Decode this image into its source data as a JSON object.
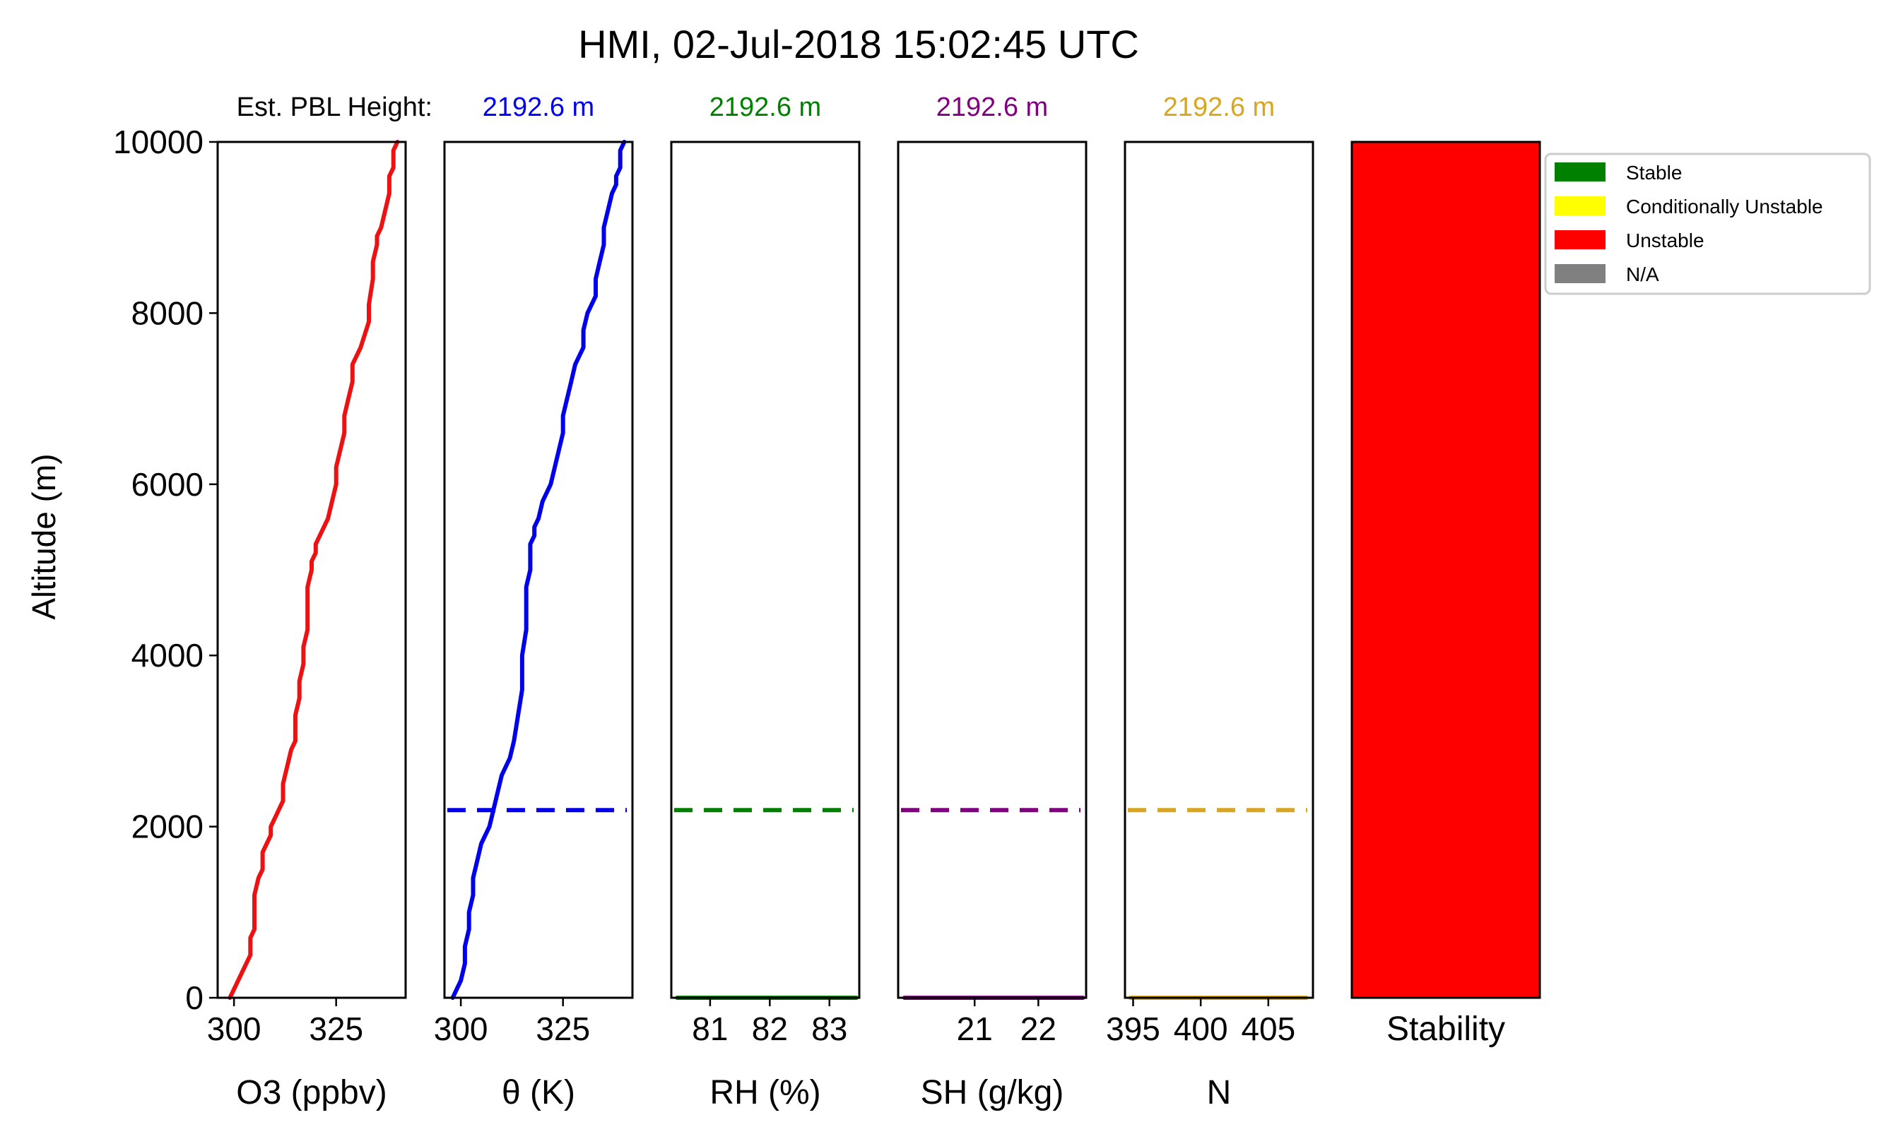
{
  "title": "HMI, 02-Jul-2018 15:02:45 UTC",
  "pbl_prefix": "Est. PBL Height:",
  "y_axis": {
    "label": "Altitude (m)",
    "ylim": [
      0,
      10000
    ],
    "ticks": [
      0,
      2000,
      4000,
      6000,
      8000,
      10000
    ]
  },
  "legend": {
    "placement": "upper-right, outside the stability panel",
    "items": [
      {
        "label": "Stable",
        "color": "#008000"
      },
      {
        "label": "Conditionally Unstable",
        "color": "#ffff00"
      },
      {
        "label": "Unstable",
        "color": "#ff0000"
      },
      {
        "label": "N/A",
        "color": "#808080"
      }
    ]
  },
  "chart_data": [
    {
      "type": "line",
      "xlabel": "O3 (ppbv)",
      "color": "#ee1111",
      "xlim": [
        296,
        342
      ],
      "ticks": [
        300,
        325
      ],
      "tick_labels": [
        "300",
        "325"
      ],
      "pbl_label": "",
      "series": [
        {
          "x": [
            299,
            300,
            301,
            302,
            303,
            304,
            304,
            305,
            305,
            305,
            306,
            307,
            307,
            307,
            308,
            309,
            309,
            310,
            312,
            312,
            313,
            314,
            315,
            315,
            315,
            316,
            316,
            317,
            317,
            318,
            318,
            318,
            319,
            319,
            320,
            320,
            322,
            323,
            324,
            325,
            325,
            326,
            327,
            327,
            328,
            329,
            329,
            330,
            331,
            333,
            333,
            334,
            334,
            335,
            335,
            336,
            337,
            338,
            338,
            339,
            339,
            340
          ],
          "y": [
            0,
            100,
            200,
            300,
            400,
            500,
            700,
            800,
            1000,
            1200,
            1400,
            1500,
            1600,
            1700,
            1800,
            1900,
            2000,
            2100,
            2300,
            2500,
            2700,
            2900,
            3000,
            3100,
            3300,
            3500,
            3700,
            3900,
            4100,
            4300,
            4500,
            4800,
            5000,
            5100,
            5200,
            5300,
            5500,
            5600,
            5800,
            6000,
            6200,
            6400,
            6600,
            6800,
            7000,
            7200,
            7400,
            7500,
            7600,
            7900,
            8100,
            8400,
            8600,
            8800,
            8900,
            9000,
            9200,
            9400,
            9600,
            9700,
            9900,
            10000
          ]
        }
      ]
    },
    {
      "type": "line",
      "xlabel": "θ (K)",
      "color": "#0000ee",
      "xlim": [
        296,
        342
      ],
      "ticks": [
        300,
        325
      ],
      "tick_labels": [
        "300",
        "325"
      ],
      "pbl_label": "2192.6 m",
      "pbl_height": 2192.6,
      "series": [
        {
          "x": [
            298,
            299,
            300,
            301,
            301,
            302,
            302,
            303,
            303,
            304,
            305,
            306,
            307,
            308,
            309,
            310,
            312,
            313,
            314,
            315,
            315,
            316,
            316,
            316,
            317,
            317,
            317,
            317,
            318,
            318,
            319,
            320,
            322,
            323,
            324,
            325,
            325,
            326,
            327,
            328,
            329,
            330,
            330,
            331,
            333,
            333,
            334,
            335,
            335,
            336,
            337,
            338,
            338,
            339,
            339,
            340
          ],
          "y": [
            0,
            100,
            200,
            400,
            600,
            800,
            1000,
            1200,
            1400,
            1600,
            1800,
            1900,
            2000,
            2200,
            2400,
            2600,
            2800,
            3000,
            3300,
            3600,
            4000,
            4300,
            4600,
            4800,
            5000,
            5100,
            5200,
            5300,
            5400,
            5500,
            5600,
            5800,
            6000,
            6200,
            6400,
            6600,
            6800,
            7000,
            7200,
            7400,
            7500,
            7600,
            7800,
            8000,
            8200,
            8400,
            8600,
            8800,
            9000,
            9200,
            9400,
            9500,
            9600,
            9700,
            9900,
            10000
          ]
        }
      ]
    },
    {
      "type": "line",
      "xlabel": "RH (%)",
      "color": "#008000",
      "xlim": [
        80.35,
        83.5
      ],
      "ticks": [
        81,
        82,
        83
      ],
      "tick_labels": [
        "81",
        "82",
        "83"
      ],
      "pbl_label": "2192.6 m",
      "pbl_height": 2192.6,
      "series": [
        {
          "x": [
            80.45,
            83.45
          ],
          "y": [
            0,
            0
          ]
        }
      ]
    },
    {
      "type": "line",
      "xlabel": "SH (g/kg)",
      "color": "#800080",
      "xlim": [
        19.8,
        22.75
      ],
      "ticks": [
        21,
        22
      ],
      "tick_labels": [
        "21",
        "22"
      ],
      "pbl_label": "2192.6 m",
      "pbl_height": 2192.6,
      "series": [
        {
          "x": [
            19.9,
            22.7
          ],
          "y": [
            0,
            0
          ]
        }
      ]
    },
    {
      "type": "line",
      "xlabel": "N",
      "color": "#daa520",
      "xlim": [
        394.4,
        408.3
      ],
      "ticks": [
        395,
        400,
        405
      ],
      "tick_labels": [
        "395",
        "400",
        "405"
      ],
      "pbl_label": "2192.6 m",
      "pbl_height": 2192.6,
      "series": [
        {
          "x": [
            394.8,
            407.8
          ],
          "y": [
            0,
            0
          ]
        }
      ]
    },
    {
      "type": "heatmap",
      "xlabel": "Stability",
      "color": "#ff0000",
      "stability_layers": [
        {
          "from": 0,
          "to": 10000,
          "category": "Unstable"
        }
      ]
    }
  ]
}
